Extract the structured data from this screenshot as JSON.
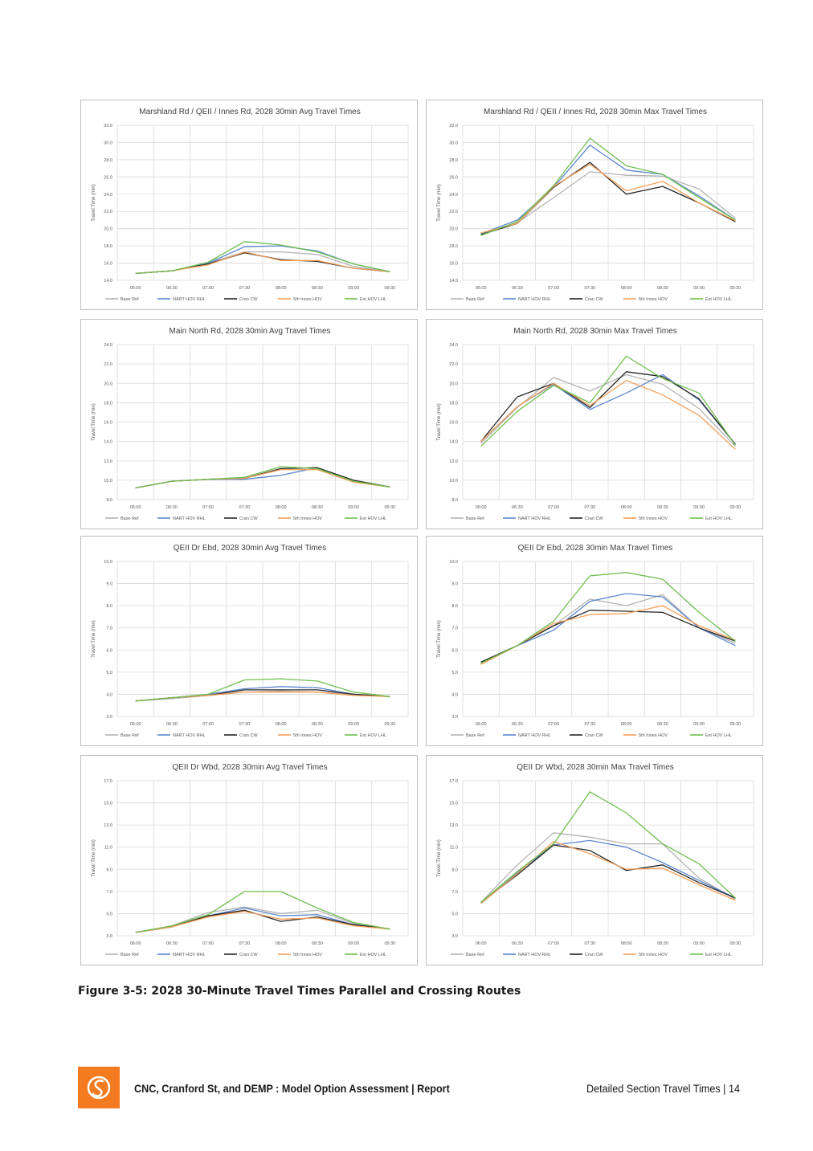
{
  "caption": "Figure 3-5:  2028 30-Minute Travel Times Parallel and Crossing Routes",
  "footer": {
    "report_title": "CNC, Cranford St, and DEMP : Model Option Assessment | Report",
    "section": "Detailed Section Travel Times",
    "separator": "|",
    "page_number": "14"
  },
  "series_style": [
    {
      "name": "Base Ref",
      "color": "#b4b4b4"
    },
    {
      "name": "NART HOV RHL",
      "color": "#5b87d0"
    },
    {
      "name": "Cran CW",
      "color": "#262626"
    },
    {
      "name": "5th Innes HOV",
      "color": "#f5a05a"
    },
    {
      "name": "Ext HOV LHL",
      "color": "#6fbf4f"
    }
  ],
  "chart_data": [
    {
      "type": "line",
      "title": "Marshland Rd / QEII / Innes Rd, 2028 30min Avg Travel Times",
      "ylabel": "Travel Time (min)",
      "ylim": [
        14,
        32
      ],
      "yticks": [
        "14.0",
        "16.0",
        "18.0",
        "20.0",
        "22.0",
        "24.0",
        "26.0",
        "28.0",
        "30.0",
        "32.0"
      ],
      "x": [
        "06:00",
        "06:30",
        "07:00",
        "07:30",
        "08:00",
        "08:30",
        "09:00",
        "09:30"
      ],
      "series": [
        {
          "name": "Base Ref",
          "values": [
            14.8,
            15.1,
            16.0,
            17.3,
            17.3,
            17.0,
            15.6,
            15.0
          ]
        },
        {
          "name": "NART HOV RHL",
          "values": [
            14.8,
            15.1,
            16.0,
            17.9,
            18.0,
            17.4,
            15.9,
            15.0
          ]
        },
        {
          "name": "Cran CW",
          "values": [
            14.8,
            15.1,
            15.9,
            17.2,
            16.4,
            16.2,
            15.4,
            15.0
          ]
        },
        {
          "name": "5th Innes HOV",
          "values": [
            14.8,
            15.1,
            15.8,
            17.3,
            16.3,
            16.3,
            15.4,
            15.0
          ]
        },
        {
          "name": "Ext HOV LHL",
          "values": [
            14.8,
            15.1,
            16.1,
            18.5,
            18.1,
            17.3,
            15.9,
            15.0
          ]
        }
      ]
    },
    {
      "type": "line",
      "title": "Marshland Rd / QEII / Innes Rd, 2028 30min Max Travel Times",
      "ylabel": "Travel Time (min)",
      "ylim": [
        14,
        32
      ],
      "yticks": [
        "14.0",
        "16.0",
        "18.0",
        "20.0",
        "22.0",
        "24.0",
        "26.0",
        "28.0",
        "30.0",
        "32.0"
      ],
      "x": [
        "06:00",
        "06:30",
        "07:00",
        "07:30",
        "08:00",
        "08:30",
        "09:00",
        "09:30"
      ],
      "series": [
        {
          "name": "Base Ref",
          "values": [
            19.4,
            20.7,
            23.6,
            26.6,
            26.2,
            26.1,
            24.6,
            21.2
          ]
        },
        {
          "name": "NART HOV RHL",
          "values": [
            19.4,
            21.0,
            24.8,
            29.7,
            26.8,
            26.3,
            23.8,
            21.0
          ]
        },
        {
          "name": "Cran CW",
          "values": [
            19.3,
            20.6,
            24.8,
            27.7,
            24.0,
            24.9,
            23.0,
            20.8
          ]
        },
        {
          "name": "5th Innes HOV",
          "values": [
            19.5,
            20.6,
            24.9,
            27.5,
            24.4,
            25.5,
            23.0,
            20.9
          ]
        },
        {
          "name": "Ext HOV LHL",
          "values": [
            19.2,
            20.8,
            25.0,
            30.5,
            27.3,
            26.3,
            23.6,
            21.0
          ]
        }
      ]
    },
    {
      "type": "line",
      "title": "Main North Rd, 2028 30min Avg Travel Times",
      "ylabel": "Travel Time (min)",
      "ylim": [
        8,
        24
      ],
      "yticks": [
        "8.0",
        "10.0",
        "12.0",
        "14.0",
        "16.0",
        "18.0",
        "20.0",
        "22.0",
        "24.0"
      ],
      "x": [
        "06:00",
        "06:30",
        "07:00",
        "07:30",
        "08:00",
        "08:30",
        "09:00",
        "09:30"
      ],
      "series": [
        {
          "name": "Base Ref",
          "values": [
            9.2,
            9.9,
            10.1,
            10.2,
            11.1,
            11.1,
            9.9,
            9.3
          ]
        },
        {
          "name": "NART HOV RHL",
          "values": [
            9.2,
            9.9,
            10.1,
            10.1,
            10.5,
            11.3,
            9.9,
            9.3
          ]
        },
        {
          "name": "Cran CW",
          "values": [
            9.2,
            9.9,
            10.1,
            10.2,
            11.2,
            11.3,
            10.0,
            9.3
          ]
        },
        {
          "name": "5th Innes HOV",
          "values": [
            9.2,
            9.9,
            10.1,
            10.2,
            11.1,
            11.1,
            9.8,
            9.3
          ]
        },
        {
          "name": "Ext HOV LHL",
          "values": [
            9.2,
            9.9,
            10.1,
            10.3,
            11.4,
            11.2,
            9.9,
            9.3
          ]
        }
      ]
    },
    {
      "type": "line",
      "title": "Main North Rd, 2028 30min Max Travel Times",
      "ylabel": "Travel Time (min)",
      "ylim": [
        8,
        24
      ],
      "yticks": [
        "8.0",
        "10.0",
        "12.0",
        "14.0",
        "16.0",
        "18.0",
        "20.0",
        "22.0",
        "24.0"
      ],
      "x": [
        "06:00",
        "06:30",
        "07:00",
        "07:30",
        "08:00",
        "08:30",
        "09:00",
        "09:30"
      ],
      "series": [
        {
          "name": "Base Ref",
          "values": [
            13.8,
            17.5,
            20.6,
            19.2,
            20.9,
            19.9,
            17.4,
            13.5
          ]
        },
        {
          "name": "NART HOV RHL",
          "values": [
            14.0,
            17.6,
            19.9,
            17.3,
            19.0,
            20.9,
            18.3,
            13.7
          ]
        },
        {
          "name": "Cran CW",
          "values": [
            14.0,
            18.6,
            20.0,
            17.5,
            21.2,
            20.7,
            18.4,
            13.7
          ]
        },
        {
          "name": "5th Innes HOV",
          "values": [
            14.0,
            17.6,
            20.0,
            17.7,
            20.3,
            18.8,
            16.7,
            13.2
          ]
        },
        {
          "name": "Ext HOV LHL",
          "values": [
            13.5,
            17.1,
            19.8,
            18.0,
            22.8,
            20.5,
            19.0,
            13.6
          ]
        }
      ]
    },
    {
      "type": "line",
      "title": "QEII Dr Ebd, 2028 30min Avg Travel Times",
      "ylabel": "Travel Time (min)",
      "ylim": [
        3,
        10
      ],
      "yticks": [
        "3.0",
        "4.0",
        "5.0",
        "6.0",
        "7.0",
        "8.0",
        "9.0",
        "10.0"
      ],
      "x": [
        "06:00",
        "06:30",
        "07:00",
        "07:30",
        "08:00",
        "08:30",
        "09:00",
        "09:30"
      ],
      "series": [
        {
          "name": "Base Ref",
          "values": [
            3.7,
            3.8,
            3.95,
            4.1,
            4.15,
            4.1,
            4.0,
            3.9
          ]
        },
        {
          "name": "NART HOV RHL",
          "values": [
            3.7,
            3.85,
            4.0,
            4.25,
            4.35,
            4.3,
            4.0,
            3.9
          ]
        },
        {
          "name": "Cran CW",
          "values": [
            3.7,
            3.85,
            3.95,
            4.2,
            4.2,
            4.2,
            4.0,
            3.9
          ]
        },
        {
          "name": "5th Innes HOV",
          "values": [
            3.7,
            3.85,
            3.95,
            4.1,
            4.1,
            4.1,
            3.95,
            3.9
          ]
        },
        {
          "name": "Ext HOV LHL",
          "values": [
            3.7,
            3.85,
            4.0,
            4.65,
            4.7,
            4.6,
            4.1,
            3.9
          ]
        }
      ]
    },
    {
      "type": "line",
      "title": "QEII Dr Ebd, 2028 30min Max Travel Times",
      "ylabel": "Travel Time (min)",
      "ylim": [
        3,
        10
      ],
      "yticks": [
        "3.0",
        "4.0",
        "5.0",
        "6.0",
        "7.0",
        "8.0",
        "9.0",
        "10.0"
      ],
      "x": [
        "06:00",
        "06:30",
        "07:00",
        "07:30",
        "08:00",
        "08:30",
        "09:00",
        "09:30"
      ],
      "series": [
        {
          "name": "Base Ref",
          "values": [
            5.4,
            6.2,
            7.1,
            8.3,
            8.0,
            8.5,
            7.0,
            6.3
          ]
        },
        {
          "name": "NART HOV RHL",
          "values": [
            5.4,
            6.2,
            6.9,
            8.2,
            8.55,
            8.4,
            7.0,
            6.2
          ]
        },
        {
          "name": "Cran CW",
          "values": [
            5.45,
            6.2,
            7.1,
            7.8,
            7.75,
            7.7,
            7.0,
            6.4
          ]
        },
        {
          "name": "5th Innes HOV",
          "values": [
            5.35,
            6.2,
            7.2,
            7.6,
            7.65,
            8.0,
            7.1,
            6.45
          ]
        },
        {
          "name": "Ext HOV LHL",
          "values": [
            5.4,
            6.2,
            7.3,
            9.35,
            9.5,
            9.2,
            7.7,
            6.4
          ]
        }
      ]
    },
    {
      "type": "line",
      "title": "QEII Dr Wbd, 2028 30min Avg Travel Times",
      "ylabel": "Travel Time (min)",
      "ylim": [
        3,
        17
      ],
      "yticks": [
        "3.0",
        "5.0",
        "7.0",
        "9.0",
        "11.0",
        "13.0",
        "15.0",
        "17.0"
      ],
      "x": [
        "06:00",
        "06:30",
        "07:00",
        "07:30",
        "08:00",
        "08:30",
        "09:00",
        "09:30"
      ],
      "series": [
        {
          "name": "Base Ref",
          "values": [
            3.3,
            3.9,
            5.1,
            5.6,
            5.0,
            5.3,
            4.1,
            3.6
          ]
        },
        {
          "name": "NART HOV RHL",
          "values": [
            3.3,
            3.8,
            4.8,
            5.5,
            4.8,
            4.9,
            4.0,
            3.6
          ]
        },
        {
          "name": "Cran CW",
          "values": [
            3.3,
            3.8,
            4.8,
            5.3,
            4.3,
            4.7,
            4.0,
            3.6
          ]
        },
        {
          "name": "5th Innes HOV",
          "values": [
            3.3,
            3.8,
            4.7,
            5.2,
            4.5,
            4.6,
            3.9,
            3.6
          ]
        },
        {
          "name": "Ext HOV LHL",
          "values": [
            3.3,
            3.9,
            4.9,
            7.0,
            7.0,
            5.5,
            4.2,
            3.6
          ]
        }
      ]
    },
    {
      "type": "line",
      "title": "QEII Dr Wbd, 2028 30min Max Travel Times",
      "ylabel": "Travel Time (min)",
      "ylim": [
        3,
        17
      ],
      "yticks": [
        "3.0",
        "5.0",
        "7.0",
        "9.0",
        "11.0",
        "13.0",
        "15.0",
        "17.0"
      ],
      "x": [
        "06:00",
        "06:30",
        "07:00",
        "07:30",
        "08:00",
        "08:30",
        "09:00",
        "09:30"
      ],
      "series": [
        {
          "name": "Base Ref",
          "values": [
            6.0,
            9.4,
            12.3,
            11.9,
            11.3,
            11.3,
            8.2,
            6.3
          ]
        },
        {
          "name": "NART HOV RHL",
          "values": [
            6.0,
            8.7,
            11.2,
            11.6,
            11.0,
            9.6,
            8.0,
            6.4
          ]
        },
        {
          "name": "Cran CW",
          "values": [
            6.0,
            8.5,
            11.2,
            10.7,
            8.9,
            9.4,
            7.8,
            6.4
          ]
        },
        {
          "name": "5th Innes HOV",
          "values": [
            5.9,
            8.6,
            11.5,
            10.4,
            9.0,
            9.1,
            7.6,
            6.2
          ]
        },
        {
          "name": "Ext HOV LHL",
          "values": [
            6.0,
            8.8,
            11.3,
            16.0,
            14.1,
            11.3,
            9.5,
            6.4
          ]
        }
      ]
    }
  ]
}
